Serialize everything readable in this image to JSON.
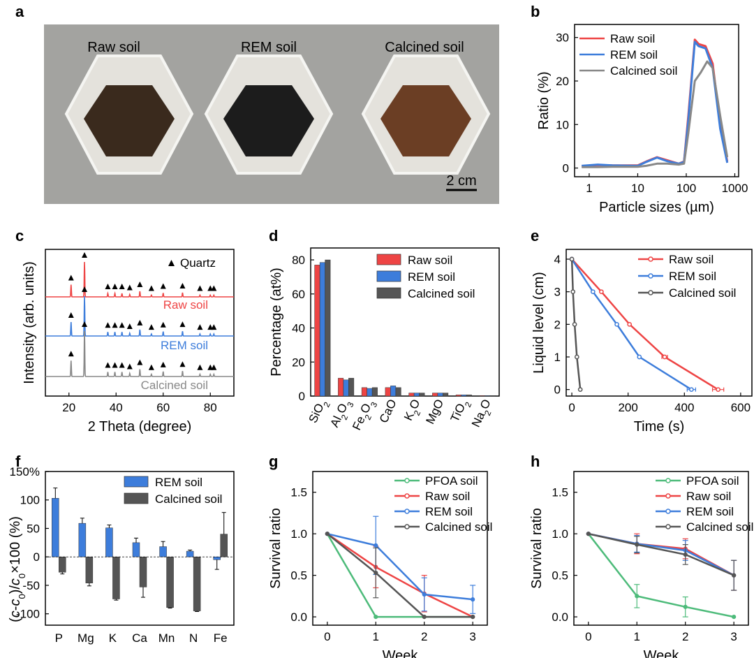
{
  "colors": {
    "raw": "#ee4444",
    "rem": "#3d7ddb",
    "calcined": "#555555",
    "calcined_light": "#888888",
    "pfoa": "#4dbb7a",
    "axis": "#000000"
  },
  "letters": {
    "a": "a",
    "b": "b",
    "c": "c",
    "d": "d",
    "e": "e",
    "f": "f",
    "g": "g",
    "h": "h"
  },
  "photo": {
    "labels": [
      "Raw soil",
      "REM soil",
      "Calcined soil"
    ],
    "soil_colors": [
      "#3a2a1d",
      "#1c1c1c",
      "#6b3e24"
    ],
    "scale_label": "2 cm"
  },
  "chart_data": [
    {
      "panel": "b",
      "type": "line",
      "xscale": "log",
      "xlim": [
        0.5,
        1200
      ],
      "ylim": [
        -2,
        33
      ],
      "xticks": [
        1,
        10,
        100,
        1000
      ],
      "xticklabels": [
        "1",
        "10",
        "100",
        "1000"
      ],
      "yticks": [
        0,
        10,
        20,
        30
      ],
      "yticklabels": [
        "0",
        "10",
        "20",
        "30"
      ],
      "xlabel": "Particle sizes (µm)",
      "ylabel": "Ratio (%)",
      "legend": "top-left",
      "series": [
        {
          "name": "Raw soil",
          "color_key": "raw",
          "x": [
            0.7,
            1.5,
            3,
            10,
            15,
            25,
            40,
            70,
            90,
            110,
            150,
            180,
            250,
            350,
            500,
            700
          ],
          "y": [
            0.4,
            0.7,
            0.6,
            0.6,
            1.5,
            2.5,
            1.8,
            1.0,
            1.5,
            12,
            29.5,
            28.5,
            28,
            24,
            10,
            1.5
          ]
        },
        {
          "name": "REM soil",
          "color_key": "rem",
          "x": [
            0.7,
            1.5,
            3,
            10,
            15,
            25,
            40,
            70,
            90,
            110,
            150,
            180,
            250,
            350,
            500,
            700
          ],
          "y": [
            0.5,
            0.8,
            0.6,
            0.5,
            1.4,
            2.4,
            1.6,
            1.0,
            1.4,
            11,
            29,
            28,
            27.5,
            23,
            9,
            1.2
          ]
        },
        {
          "name": "Calcined soil",
          "color_key": "calcined_light",
          "x": [
            0.7,
            1.5,
            3,
            10,
            15,
            25,
            40,
            70,
            90,
            110,
            150,
            200,
            270,
            350,
            500,
            700
          ],
          "y": [
            0.2,
            0.2,
            0.3,
            0.3,
            0.5,
            1.0,
            1.0,
            0.8,
            1.0,
            8,
            20,
            22,
            24.5,
            23,
            12,
            2.5
          ]
        }
      ]
    },
    {
      "panel": "c",
      "type": "line",
      "xlim": [
        10,
        90
      ],
      "xticks": [
        20,
        40,
        60,
        80
      ],
      "xticklabels": [
        "20",
        "40",
        "60",
        "80"
      ],
      "xlabel": "2 Theta (degree)",
      "ylabel": "Intensity (arb. units)",
      "legend_label": "Quartz",
      "peaks": [
        {
          "x": 20.9,
          "h": 0.35
        },
        {
          "x": 26.6,
          "h": 1.0
        },
        {
          "x": 36.5,
          "h": 0.1
        },
        {
          "x": 39.5,
          "h": 0.1
        },
        {
          "x": 42.5,
          "h": 0.1
        },
        {
          "x": 45.8,
          "h": 0.07
        },
        {
          "x": 50.1,
          "h": 0.16
        },
        {
          "x": 55.0,
          "h": 0.05
        },
        {
          "x": 60.0,
          "h": 0.11
        },
        {
          "x": 68.2,
          "h": 0.12
        },
        {
          "x": 75.6,
          "h": 0.05
        },
        {
          "x": 80.0,
          "h": 0.05
        },
        {
          "x": 81.5,
          "h": 0.05
        }
      ],
      "marker_x": [
        20.9,
        26.6,
        36.5,
        39.5,
        42.5,
        45.8,
        50.1,
        55.0,
        60.0,
        68.2,
        75.6,
        80.0,
        81.5
      ],
      "series": [
        {
          "name": "Raw soil",
          "color_key": "raw"
        },
        {
          "name": "REM soil",
          "color_key": "rem"
        },
        {
          "name": "Calcined soil",
          "color_key": "calcined_light"
        }
      ]
    },
    {
      "panel": "d",
      "type": "bar",
      "categories": [
        "SiO2",
        "Al2O3",
        "Fe2O3",
        "CaO",
        "K2O",
        "MgO",
        "TiO2",
        "Na2O"
      ],
      "category_base": [
        "SiO",
        "Al",
        "Fe",
        "CaO",
        "K",
        "MgO",
        "TiO",
        "Na"
      ],
      "category_sub1": [
        "2",
        "2",
        "2",
        "",
        "2",
        "",
        "2",
        "2"
      ],
      "category_mid": [
        "",
        "O",
        "O",
        "",
        "O",
        "",
        "",
        "O"
      ],
      "category_sub2": [
        "",
        "3",
        "3",
        "",
        "",
        "",
        "",
        ""
      ],
      "ylim": [
        0,
        87
      ],
      "yticks": [
        0,
        20,
        40,
        60,
        80
      ],
      "yticklabels": [
        "0",
        "20",
        "40",
        "60",
        "80"
      ],
      "ylabel": "Percentage (at%)",
      "legend": "top-right",
      "series": [
        {
          "name": "Raw soil",
          "color_key": "raw",
          "values": [
            77,
            10.5,
            5,
            5,
            1.8,
            1.8,
            0.7,
            0.3
          ]
        },
        {
          "name": "REM soil",
          "color_key": "rem",
          "values": [
            78.5,
            9.5,
            4.5,
            6,
            1.8,
            1.8,
            0.7,
            0.3
          ]
        },
        {
          "name": "Calcined soil",
          "color_key": "calcined",
          "values": [
            80,
            10.5,
            5,
            5,
            1.8,
            1.8,
            0.7,
            0.3
          ]
        }
      ]
    },
    {
      "panel": "e",
      "type": "line",
      "xlim": [
        -20,
        640
      ],
      "ylim": [
        -0.2,
        4.3
      ],
      "xticks": [
        0,
        200,
        400,
        600
      ],
      "xticklabels": [
        "0",
        "200",
        "400",
        "600"
      ],
      "yticks": [
        0,
        1,
        2,
        3,
        4
      ],
      "yticklabels": [
        "0",
        "1",
        "2",
        "3",
        "4"
      ],
      "xlabel": "Time (s)",
      "ylabel": "Liquid level (cm)",
      "legend": "top-right",
      "series": [
        {
          "name": "Raw soil",
          "color_key": "raw",
          "x": [
            0,
            105,
            205,
            330,
            520
          ],
          "y": [
            4,
            3,
            2,
            1,
            0
          ],
          "xerr": [
            0,
            0,
            0,
            10,
            20
          ]
        },
        {
          "name": "REM soil",
          "color_key": "rem",
          "x": [
            0,
            75,
            160,
            240,
            425
          ],
          "y": [
            4,
            3,
            2,
            1,
            0
          ],
          "xerr": [
            0,
            0,
            0,
            0,
            15
          ]
        },
        {
          "name": "Calcined soil",
          "color_key": "calcined",
          "x": [
            0,
            4,
            10,
            18,
            30
          ],
          "y": [
            4,
            3,
            2,
            1,
            0
          ],
          "xerr": [
            0,
            0,
            0,
            0,
            0
          ]
        }
      ]
    },
    {
      "panel": "f",
      "type": "bar",
      "categories": [
        "P",
        "Mg",
        "K",
        "Ca",
        "Mn",
        "N",
        "Fe"
      ],
      "ylim": [
        -120,
        150
      ],
      "yticks": [
        -100,
        -50,
        0,
        50,
        100,
        150
      ],
      "yticklabels": [
        "-100",
        "-50",
        "0",
        "50",
        "100",
        "150%"
      ],
      "ylabel": "(c-c0)/c0×100 (%)",
      "ylabel_parts": {
        "open": "(",
        "c": "c",
        "dash": "-",
        "c0": "c",
        "sub0": "0",
        "close": ")/",
        "c2": "c",
        "sub2": "0",
        "tail": "×100 (%)"
      },
      "legend": "top-right",
      "series": [
        {
          "name": "REM soil",
          "color_key": "rem",
          "values": [
            103,
            59,
            51,
            25,
            18,
            10,
            -5
          ],
          "err": [
            18,
            9,
            5,
            8,
            9,
            2,
            17
          ]
        },
        {
          "name": "Calcined soil",
          "color_key": "calcined",
          "values": [
            -27,
            -46,
            -74,
            -53,
            -89,
            -95,
            40
          ],
          "err": [
            3,
            5,
            2,
            18,
            1,
            1,
            38
          ]
        }
      ]
    },
    {
      "panel": "g",
      "type": "line",
      "xlim": [
        -0.3,
        3.3
      ],
      "ylim": [
        -0.1,
        1.75
      ],
      "xticks": [
        0,
        1,
        2,
        3
      ],
      "xticklabels": [
        "0",
        "1",
        "2",
        "3"
      ],
      "yticks": [
        0.0,
        0.5,
        1.0,
        1.5
      ],
      "yticklabels": [
        "0.0",
        "0.5",
        "1.0",
        "1.5"
      ],
      "xlabel": "Week",
      "ylabel": "Survival ratio",
      "legend": "top-right",
      "series": [
        {
          "name": "PFOA soil",
          "color_key": "pfoa",
          "x": [
            0,
            1,
            2,
            3
          ],
          "y": [
            1.0,
            0.0,
            0.0,
            0.0
          ],
          "err": [
            0,
            0,
            0,
            0
          ]
        },
        {
          "name": "Raw soil",
          "color_key": "raw",
          "x": [
            0,
            1,
            2,
            3
          ],
          "y": [
            1.0,
            0.6,
            0.28,
            0.0
          ],
          "err": [
            0,
            0.25,
            0.22,
            0
          ]
        },
        {
          "name": "REM soil",
          "color_key": "rem",
          "x": [
            0,
            1,
            2,
            3
          ],
          "y": [
            1.0,
            0.86,
            0.27,
            0.21
          ],
          "err": [
            0,
            0.35,
            0.2,
            0.17
          ]
        },
        {
          "name": "Calcined soil",
          "color_key": "calcined",
          "x": [
            0,
            1,
            2,
            3
          ],
          "y": [
            1.0,
            0.53,
            0.0,
            0.0
          ],
          "err": [
            0,
            0.3,
            0,
            0
          ]
        }
      ]
    },
    {
      "panel": "h",
      "type": "line",
      "xlim": [
        -0.3,
        3.3
      ],
      "ylim": [
        -0.1,
        1.75
      ],
      "xticks": [
        0,
        1,
        2,
        3
      ],
      "xticklabels": [
        "0",
        "1",
        "2",
        "3"
      ],
      "yticks": [
        0.0,
        0.5,
        1.0,
        1.5
      ],
      "yticklabels": [
        "0.0",
        "0.5",
        "1.0",
        "1.5"
      ],
      "xlabel": "Week",
      "ylabel": "Survival ratio",
      "legend": "top-right",
      "series": [
        {
          "name": "PFOA soil",
          "color_key": "pfoa",
          "x": [
            0,
            1,
            2,
            3
          ],
          "y": [
            1.0,
            0.25,
            0.12,
            0.0
          ],
          "err": [
            0,
            0.14,
            0.12,
            0
          ]
        },
        {
          "name": "Raw soil",
          "color_key": "raw",
          "x": [
            0,
            1,
            2,
            3
          ],
          "y": [
            1.0,
            0.88,
            0.82,
            0.5
          ],
          "err": [
            0,
            0.12,
            0.12,
            0.18
          ]
        },
        {
          "name": "REM soil",
          "color_key": "rem",
          "x": [
            0,
            1,
            2,
            3
          ],
          "y": [
            1.0,
            0.88,
            0.8,
            0.5
          ],
          "err": [
            0,
            0.1,
            0.12,
            0.18
          ]
        },
        {
          "name": "Calcined soil",
          "color_key": "calcined",
          "x": [
            0,
            1,
            2,
            3
          ],
          "y": [
            1.0,
            0.87,
            0.75,
            0.5
          ],
          "err": [
            0,
            0.1,
            0.12,
            0.18
          ]
        }
      ]
    }
  ]
}
